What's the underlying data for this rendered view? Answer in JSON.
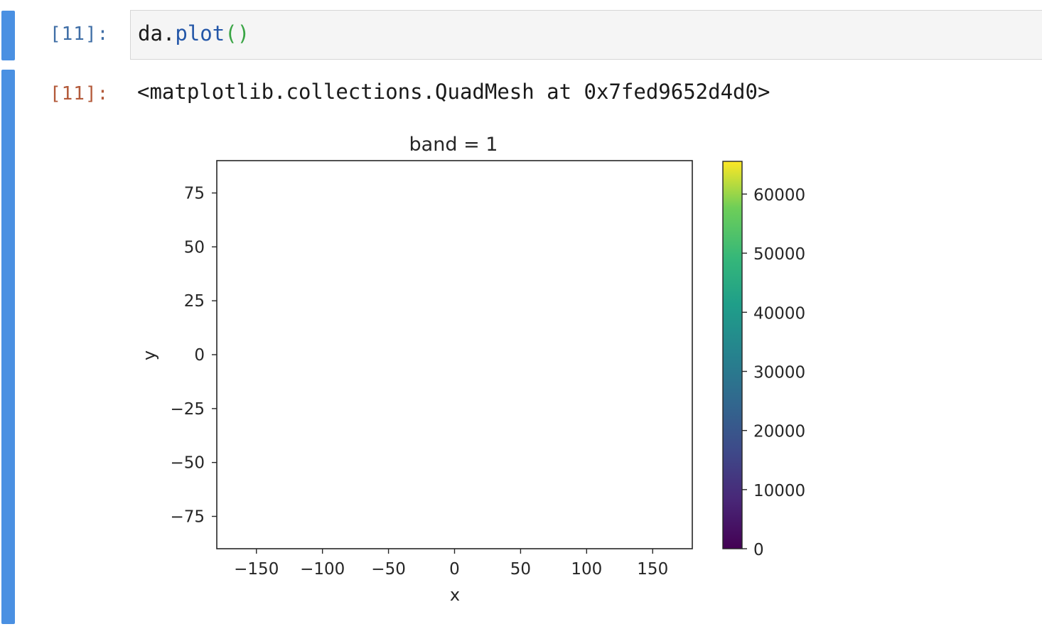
{
  "cell_in": {
    "prompt": "[11]:",
    "code_name": "da",
    "code_dot": ".",
    "code_func": "plot",
    "code_parens": "()"
  },
  "cell_out": {
    "prompt": "[11]:",
    "repr_text": "<matplotlib.collections.QuadMesh at 0x7fed9652d4d0>"
  },
  "colors": {
    "cell_bar": "#4a90e2",
    "in_prompt": "#3f6ea6",
    "out_prompt": "#b35a3a"
  },
  "chart_data": {
    "type": "heatmap",
    "title": "band = 1",
    "xlabel": "x",
    "ylabel": "y",
    "xlim": [
      -180,
      180
    ],
    "ylim": [
      -90,
      90
    ],
    "xticks": [
      -150,
      -100,
      -50,
      0,
      50,
      100,
      150
    ],
    "xtick_labels": [
      "−150",
      "−100",
      "−50",
      "0",
      "50",
      "100",
      "150"
    ],
    "yticks": [
      75,
      50,
      25,
      0,
      -25,
      -50,
      -75
    ],
    "ytick_labels": [
      "75",
      "50",
      "25",
      "0",
      "−25",
      "−50",
      "−75"
    ],
    "grid": false,
    "values": [],
    "colorbar": {
      "colormap": "viridis",
      "range": [
        0,
        65535
      ],
      "ticks": [
        0,
        10000,
        20000,
        30000,
        40000,
        50000,
        60000
      ],
      "tick_labels": [
        "0",
        "10000",
        "20000",
        "30000",
        "40000",
        "50000",
        "60000"
      ]
    }
  }
}
